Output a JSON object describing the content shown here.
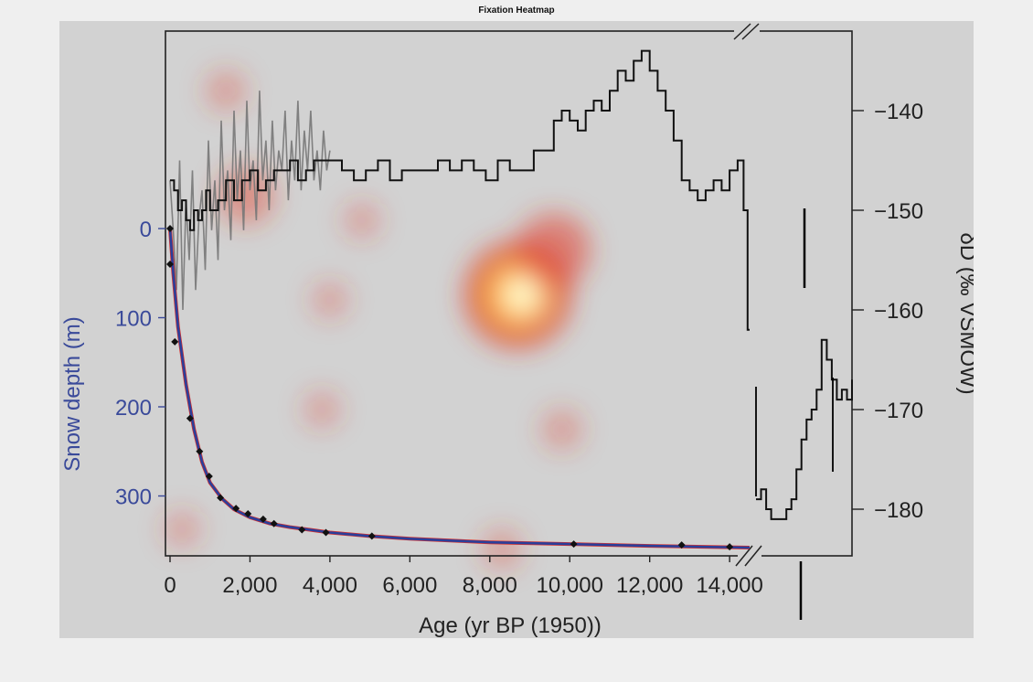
{
  "title": "Fixation Heatmap",
  "chart_data": {
    "type": "line",
    "xlabel": "Age (yr BP (1950))",
    "ylabel_left": "Snow depth (m)",
    "ylabel_right": "δD (‰ VSMOW)",
    "x_ticks": [
      "0",
      "2,000",
      "4,000",
      "6,000",
      "8,000",
      "10,000",
      "12,000",
      "14,000"
    ],
    "y_left_ticks": [
      "0",
      "100",
      "200",
      "300"
    ],
    "y_right_ticks": [
      "−140",
      "−150",
      "−160",
      "−170",
      "−180"
    ],
    "x_axis_break_after": 14500,
    "xlim": [
      -100,
      14500
    ],
    "ylim_left": [
      -120,
      360
    ],
    "ylim_right": [
      -184.5,
      -131.5
    ],
    "colors": {
      "depth_line": "#2a3f9b",
      "depth_fit": "#d33030",
      "left_axis_text": "#3a4a9a",
      "isotope_line": "#111111",
      "isotope_raw": "#777777"
    },
    "series": [
      {
        "key": "depth",
        "axis": "left",
        "x": [
          0,
          80,
          200,
          400,
          600,
          800,
          1000,
          1300,
          1600,
          2000,
          2500,
          3000,
          3500,
          4000,
          5000,
          6000,
          7000,
          8000,
          10000,
          12000,
          14500
        ],
        "y": [
          0,
          50,
          110,
          175,
          225,
          262,
          285,
          303,
          315,
          324,
          331,
          335,
          338,
          341,
          345,
          348,
          350,
          352,
          354,
          356,
          358
        ]
      },
      {
        "key": "depth_points",
        "axis": "left",
        "x": [
          0,
          0,
          120,
          500,
          740,
          980,
          1260,
          1650,
          1950,
          2330,
          2600,
          3300,
          3900,
          5050,
          10100,
          12800,
          14000
        ],
        "y": [
          0,
          40,
          127,
          213,
          250,
          278,
          302,
          314,
          320,
          326,
          331,
          338,
          341,
          345,
          354,
          355,
          357
        ]
      },
      {
        "key": "isotope_raw",
        "axis": "right",
        "x": [
          0,
          80,
          160,
          240,
          320,
          400,
          480,
          560,
          640,
          720,
          800,
          880,
          960,
          1040,
          1120,
          1200,
          1280,
          1360,
          1440,
          1520,
          1600,
          1680,
          1760,
          1840,
          1920,
          2000,
          2080,
          2160,
          2240,
          2320,
          2400,
          2480,
          2560,
          2640,
          2720,
          2800,
          2880,
          2960,
          3040,
          3120,
          3200,
          3280,
          3360,
          3440,
          3520,
          3600,
          3680,
          3760,
          3840,
          3920,
          4000
        ],
        "y": [
          -147,
          -152,
          -158,
          -145,
          -160,
          -149,
          -155,
          -146,
          -158,
          -151,
          -148,
          -156,
          -143,
          -152,
          -147,
          -155,
          -141,
          -150,
          -146,
          -153,
          -140,
          -149,
          -144,
          -152,
          -139,
          -148,
          -145,
          -151,
          -138,
          -147,
          -143,
          -150,
          -141,
          -148,
          -144,
          -146,
          -140,
          -149,
          -143,
          -147,
          -139,
          -148,
          -142,
          -146,
          -140,
          -147,
          -144,
          -148,
          -142,
          -146,
          -144
        ]
      },
      {
        "key": "isotope",
        "axis": "right",
        "x": [
          0,
          100,
          200,
          300,
          400,
          500,
          600,
          700,
          800,
          900,
          1000,
          1200,
          1400,
          1600,
          1800,
          2000,
          2200,
          2400,
          2600,
          2800,
          3000,
          3200,
          3400,
          3600,
          3800,
          4000,
          4300,
          4600,
          4900,
          5200,
          5500,
          5800,
          6100,
          6400,
          6700,
          7000,
          7300,
          7600,
          7900,
          8200,
          8500,
          8800,
          9100,
          9400,
          9600,
          9800,
          10000,
          10200,
          10400,
          10600,
          10800,
          11000,
          11200,
          11400,
          11600,
          11800,
          12000,
          12200,
          12400,
          12600,
          12800,
          13000,
          13200,
          13400,
          13600,
          13800,
          14000,
          14200,
          14350,
          14450,
          14500
        ],
        "y": [
          -147,
          -148,
          -150,
          -149,
          -151,
          -152,
          -150,
          -151,
          -150,
          -148,
          -150,
          -149,
          -147,
          -149,
          -147,
          -146,
          -148,
          -147,
          -146,
          -146,
          -145,
          -147,
          -146,
          -145,
          -145,
          -145,
          -146,
          -147,
          -146,
          -145,
          -147,
          -146,
          -146,
          -146,
          -145,
          -146,
          -145,
          -146,
          -147,
          -145,
          -146,
          -146,
          -144,
          -144,
          -141,
          -140,
          -141,
          -142,
          -140,
          -139,
          -140,
          -138,
          -136,
          -137,
          -135,
          -134,
          -136,
          -138,
          -140,
          -143,
          -147,
          -148,
          -149,
          -148,
          -147,
          -148,
          -146,
          -145,
          -150,
          -162,
          -162
        ]
      },
      {
        "key": "isotope_glacial",
        "axis": "right",
        "x": [
          14600,
          14700,
          14800,
          14900,
          15000,
          15100,
          15200,
          15300,
          15400,
          15500,
          15600,
          15700,
          15800,
          15900,
          16000,
          16100,
          16200,
          16300,
          16400,
          16500
        ],
        "y": [
          -179,
          -178,
          -180,
          -181,
          -181,
          -181,
          -180,
          -179,
          -176,
          -173,
          -171,
          -170,
          -168,
          -163,
          -165,
          -167,
          -169,
          -168,
          -169,
          -167
        ]
      }
    ],
    "heatmap": [
      {
        "x": 8700,
        "y_right": -158.5,
        "intensity": 1.0
      },
      {
        "x": 9600,
        "y_right": -154,
        "intensity": 0.6
      },
      {
        "x": 1900,
        "y_right": -148.5,
        "intensity": 0.4
      },
      {
        "x": 1400,
        "y_right": -138,
        "intensity": 0.2
      },
      {
        "x": 4800,
        "y_right": -151,
        "intensity": 0.15
      },
      {
        "x": 4000,
        "y_right": -159,
        "intensity": 0.15
      },
      {
        "x": 3800,
        "y_right": -170,
        "intensity": 0.15
      },
      {
        "x": 9800,
        "y_right": -172,
        "intensity": 0.2
      },
      {
        "x": 8300,
        "y_right": -184,
        "intensity": 0.2
      },
      {
        "x": 300,
        "y_right": -182,
        "intensity": 0.15
      }
    ],
    "grid": false,
    "legend": "none"
  }
}
